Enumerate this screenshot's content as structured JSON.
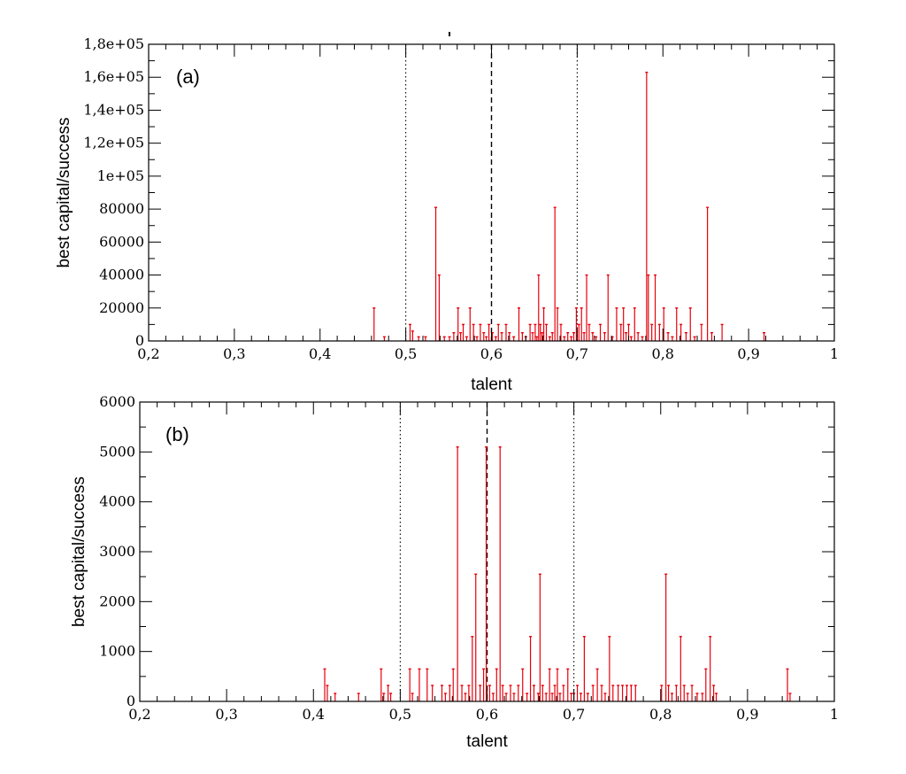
{
  "colors": {
    "stem": "#e8000b",
    "axis": "#000000",
    "reference": "#000000"
  },
  "chart_data": [
    {
      "type": "bar",
      "panel_label": "(a)",
      "xlabel": "talent",
      "ylabel": "best capital/success",
      "xlim": [
        0.2,
        1.0
      ],
      "ylim": [
        0,
        180000
      ],
      "x_ticks": [
        {
          "value": 0.2,
          "label": "0,2"
        },
        {
          "value": 0.3,
          "label": "0,3"
        },
        {
          "value": 0.4,
          "label": "0,4"
        },
        {
          "value": 0.5,
          "label": "0,5"
        },
        {
          "value": 0.6,
          "label": "0,6"
        },
        {
          "value": 0.7,
          "label": "0,7"
        },
        {
          "value": 0.8,
          "label": "0,8"
        },
        {
          "value": 0.9,
          "label": "0,9"
        },
        {
          "value": 1.0,
          "label": "1"
        }
      ],
      "y_ticks": [
        {
          "value": 0,
          "label": "0"
        },
        {
          "value": 20000,
          "label": "20000"
        },
        {
          "value": 40000,
          "label": "40000"
        },
        {
          "value": 60000,
          "label": "60000"
        },
        {
          "value": 80000,
          "label": "80000"
        },
        {
          "value": 100000,
          "label": "1e+05"
        },
        {
          "value": 120000,
          "label": "1,2e+05"
        },
        {
          "value": 140000,
          "label": "1,4e+05"
        },
        {
          "value": 160000,
          "label": "1,6e+05"
        },
        {
          "value": 180000,
          "label": "1,8e+05"
        }
      ],
      "reference_lines": [
        {
          "x": 0.5,
          "style": "dotted"
        },
        {
          "x": 0.6,
          "style": "dashed"
        },
        {
          "x": 0.7,
          "style": "dotted"
        }
      ],
      "series": [
        {
          "x": [
            0.463,
            0.475,
            0.505,
            0.508,
            0.515,
            0.523,
            0.535,
            0.539,
            0.545,
            0.551,
            0.556,
            0.561,
            0.564,
            0.567,
            0.571,
            0.575,
            0.579,
            0.583,
            0.587,
            0.591,
            0.594,
            0.597,
            0.601,
            0.605,
            0.608,
            0.612,
            0.617,
            0.621,
            0.626,
            0.632,
            0.636,
            0.64,
            0.645,
            0.648,
            0.651,
            0.653,
            0.655,
            0.657,
            0.659,
            0.661,
            0.664,
            0.668,
            0.671,
            0.674,
            0.677,
            0.681,
            0.685,
            0.689,
            0.693,
            0.696,
            0.699,
            0.702,
            0.705,
            0.708,
            0.711,
            0.714,
            0.718,
            0.722,
            0.727,
            0.732,
            0.736,
            0.741,
            0.746,
            0.751,
            0.754,
            0.757,
            0.76,
            0.763,
            0.767,
            0.771,
            0.776,
            0.781,
            0.783,
            0.787,
            0.791,
            0.796,
            0.801,
            0.806,
            0.811,
            0.816,
            0.821,
            0.827,
            0.832,
            0.837,
            0.845,
            0.852,
            0.857,
            0.869,
            0.918
          ],
          "values": [
            20000,
            2500,
            10000,
            6000,
            2500,
            2500,
            81000,
            40000,
            2500,
            2500,
            5000,
            20000,
            5000,
            10000,
            2500,
            20000,
            10000,
            2500,
            10000,
            5000,
            2500,
            10000,
            5000,
            2500,
            10000,
            5000,
            10000,
            5000,
            2500,
            20000,
            5000,
            2500,
            10000,
            5000,
            10000,
            2500,
            40000,
            10000,
            5000,
            20000,
            10000,
            2500,
            5000,
            81000,
            20000,
            10000,
            2500,
            5000,
            2500,
            5000,
            20000,
            10000,
            20000,
            5000,
            40000,
            10000,
            5000,
            2500,
            10000,
            5000,
            40000,
            2500,
            20000,
            10000,
            20000,
            5000,
            10000,
            2500,
            20000,
            5000,
            2500,
            163000,
            40000,
            10000,
            40000,
            10000,
            20000,
            5000,
            2500,
            20000,
            10000,
            5000,
            20000,
            2500,
            10000,
            81000,
            5000,
            10000,
            5000
          ]
        }
      ]
    },
    {
      "type": "bar",
      "panel_label": "(b)",
      "xlabel": "talent",
      "ylabel": "best capital/success",
      "xlim": [
        0.2,
        1.0
      ],
      "ylim": [
        0,
        6000
      ],
      "x_ticks": [
        {
          "value": 0.2,
          "label": "0,2"
        },
        {
          "value": 0.3,
          "label": "0,3"
        },
        {
          "value": 0.4,
          "label": "0,4"
        },
        {
          "value": 0.5,
          "label": "0,5"
        },
        {
          "value": 0.6,
          "label": "0,6"
        },
        {
          "value": 0.7,
          "label": "0,7"
        },
        {
          "value": 0.8,
          "label": "0,8"
        },
        {
          "value": 0.9,
          "label": "0,9"
        },
        {
          "value": 1.0,
          "label": "1"
        }
      ],
      "y_ticks": [
        {
          "value": 0,
          "label": "0"
        },
        {
          "value": 1000,
          "label": "1000"
        },
        {
          "value": 2000,
          "label": "2000"
        },
        {
          "value": 3000,
          "label": "3000"
        },
        {
          "value": 4000,
          "label": "4000"
        },
        {
          "value": 5000,
          "label": "5000"
        },
        {
          "value": 6000,
          "label": "6000"
        }
      ],
      "reference_lines": [
        {
          "x": 0.5,
          "style": "dotted"
        },
        {
          "x": 0.6,
          "style": "dashed"
        },
        {
          "x": 0.7,
          "style": "dotted"
        }
      ],
      "series": [
        {
          "x": [
            0.413,
            0.416,
            0.425,
            0.452,
            0.478,
            0.481,
            0.486,
            0.489,
            0.511,
            0.514,
            0.522,
            0.531,
            0.537,
            0.548,
            0.552,
            0.557,
            0.561,
            0.566,
            0.571,
            0.575,
            0.579,
            0.583,
            0.587,
            0.592,
            0.596,
            0.599,
            0.603,
            0.607,
            0.611,
            0.615,
            0.618,
            0.622,
            0.627,
            0.631,
            0.636,
            0.641,
            0.646,
            0.65,
            0.654,
            0.659,
            0.661,
            0.664,
            0.668,
            0.672,
            0.675,
            0.678,
            0.681,
            0.684,
            0.688,
            0.693,
            0.697,
            0.7,
            0.704,
            0.708,
            0.712,
            0.716,
            0.722,
            0.727,
            0.732,
            0.736,
            0.741,
            0.745,
            0.751,
            0.756,
            0.761,
            0.766,
            0.771,
            0.801,
            0.806,
            0.809,
            0.813,
            0.818,
            0.823,
            0.827,
            0.831,
            0.836,
            0.842,
            0.848,
            0.852,
            0.857,
            0.861,
            0.864,
            0.946,
            0.949
          ],
          "values": [
            650,
            320,
            160,
            160,
            650,
            160,
            320,
            160,
            650,
            160,
            650,
            650,
            320,
            320,
            160,
            320,
            650,
            5100,
            320,
            160,
            320,
            1300,
            2550,
            320,
            650,
            5100,
            320,
            160,
            650,
            5100,
            320,
            160,
            320,
            160,
            320,
            650,
            160,
            1300,
            320,
            160,
            2550,
            320,
            160,
            650,
            160,
            320,
            650,
            160,
            320,
            650,
            160,
            160,
            320,
            160,
            1300,
            160,
            320,
            650,
            320,
            160,
            1300,
            320,
            320,
            320,
            320,
            320,
            320,
            320,
            2550,
            320,
            160,
            320,
            1300,
            320,
            160,
            320,
            160,
            160,
            650,
            1300,
            320,
            160,
            650,
            160
          ]
        }
      ]
    }
  ]
}
